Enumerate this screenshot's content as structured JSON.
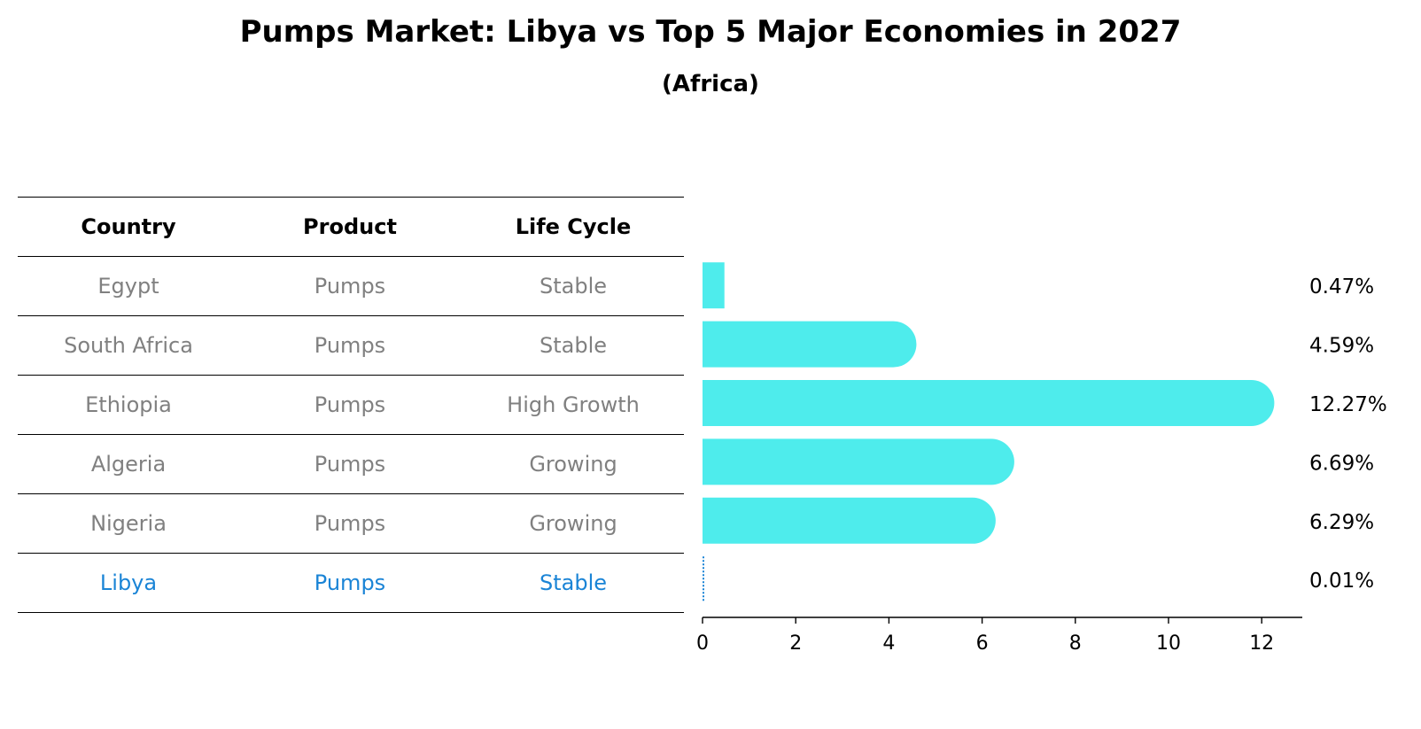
{
  "title": "Pumps Market: Libya vs Top 5 Major Economies in 2027",
  "subtitle": "(Africa)",
  "table": {
    "headers": [
      "Country",
      "Product",
      "Life Cycle"
    ],
    "rows": [
      [
        "Egypt",
        "Pumps",
        "Stable"
      ],
      [
        "South Africa",
        "Pumps",
        "Stable"
      ],
      [
        "Ethiopia",
        "Pumps",
        "High Growth"
      ],
      [
        "Algeria",
        "Pumps",
        "Growing"
      ],
      [
        "Nigeria",
        "Pumps",
        "Growing"
      ],
      [
        "Libya",
        "Pumps",
        "Stable"
      ]
    ],
    "highlight_row": "Libya",
    "highlight_color": "#1a84d6",
    "text_color": "#808080"
  },
  "chart_data": {
    "type": "bar",
    "orientation": "horizontal",
    "categories": [
      "Egypt",
      "South Africa",
      "Ethiopia",
      "Algeria",
      "Nigeria",
      "Libya"
    ],
    "values": [
      0.47,
      4.59,
      12.27,
      6.69,
      6.29,
      0.01
    ],
    "value_labels": [
      "0.47%",
      "4.59%",
      "12.27%",
      "6.69%",
      "6.29%",
      "0.01%"
    ],
    "xlim": [
      0,
      12.9
    ],
    "xticks": [
      0,
      2,
      4,
      6,
      8,
      10,
      12
    ],
    "xlabel": "",
    "ylabel": "",
    "bar_color": "#4eecec",
    "highlight_color": "#1a84d6",
    "grid": false
  }
}
